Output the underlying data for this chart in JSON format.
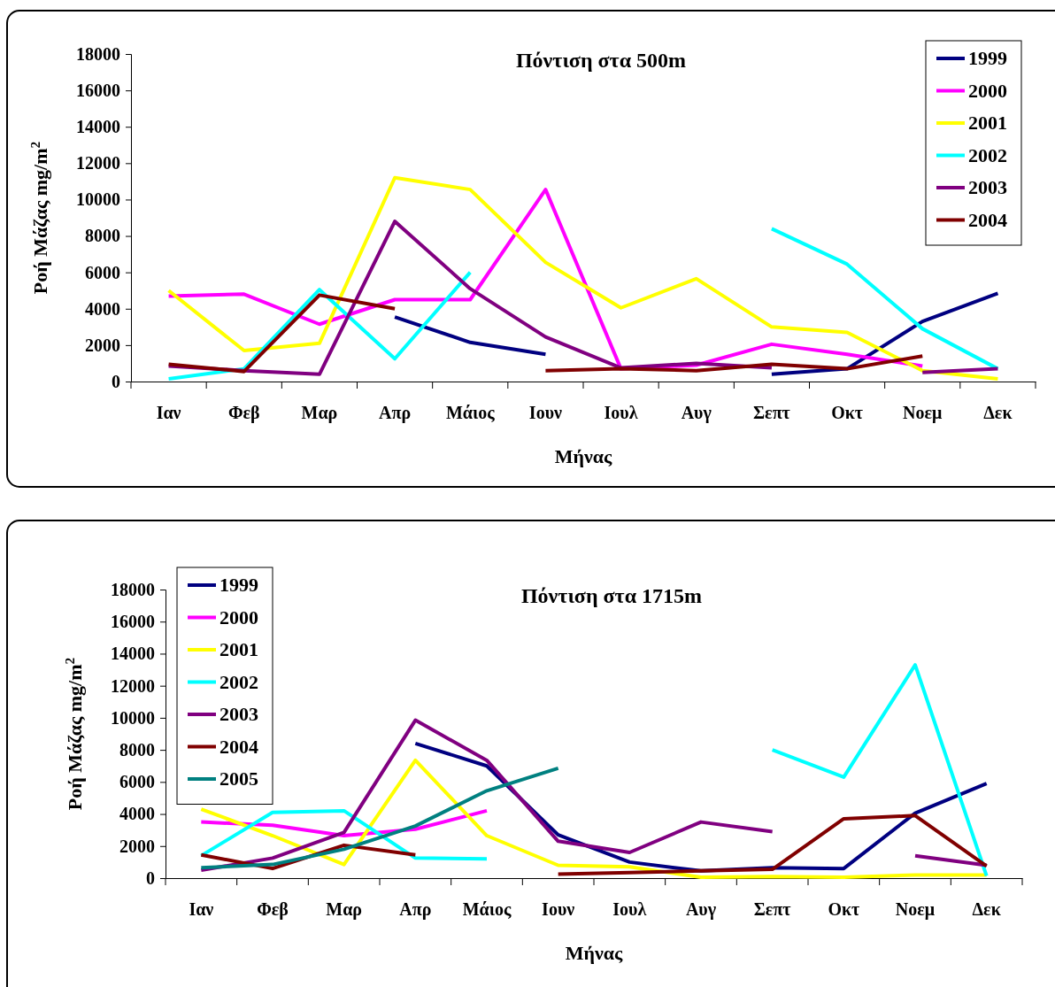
{
  "chart_data": [
    {
      "type": "line",
      "title": "Πόντιση στα 500m",
      "xlabel": "Μήνας",
      "ylabel": "Ροή Μάζας mg/m$^{2}$",
      "categories": [
        "Ιαν",
        "Φεβ",
        "Μαρ",
        "Απρ",
        "Μάιος",
        "Ιουν",
        "Ιουλ",
        "Αυγ",
        "Σεπτ",
        "Οκτ",
        "Νοεμ",
        "Δεκ"
      ],
      "ylim": [
        0,
        18000
      ],
      "yticks": [
        0,
        2000,
        4000,
        6000,
        8000,
        10000,
        12000,
        14000,
        16000,
        18000
      ],
      "grid": false,
      "legend": "top right",
      "marker": "none",
      "line_style": "solid",
      "series": [
        {
          "name": "1999",
          "color": "#000080",
          "values": [
            null,
            null,
            null,
            3550,
            2150,
            1500,
            null,
            null,
            400,
            700,
            3300,
            4850
          ]
        },
        {
          "name": "2000",
          "color": "#ff00ff",
          "values": [
            4700,
            4800,
            3150,
            4500,
            4500,
            10550,
            700,
            900,
            2050,
            1500,
            850,
            null
          ]
        },
        {
          "name": "2001",
          "color": "#ffff00",
          "values": [
            5000,
            1700,
            2100,
            11200,
            10550,
            6550,
            4050,
            5650,
            3000,
            2700,
            600,
            150
          ]
        },
        {
          "name": "2002",
          "color": "#00ffff",
          "values": [
            150,
            700,
            5050,
            1250,
            6000,
            null,
            null,
            null,
            8400,
            6450,
            2900,
            700
          ]
        },
        {
          "name": "2003",
          "color": "#800080",
          "values": [
            850,
            600,
            400,
            8800,
            5100,
            2450,
            750,
            1000,
            750,
            null,
            500,
            700
          ]
        },
        {
          "name": "2004",
          "color": "#800000",
          "values": [
            950,
            550,
            4750,
            4000,
            null,
            600,
            700,
            600,
            950,
            700,
            1400,
            null
          ]
        }
      ]
    },
    {
      "type": "line",
      "title": "Πόντιση στα 1715m",
      "xlabel": "Μήνας",
      "ylabel": "Ροή Μάζας mg/m$^{2}$",
      "categories": [
        "Ιαν",
        "Φεβ",
        "Μαρ",
        "Απρ",
        "Μάιος",
        "Ιουν",
        "Ιουλ",
        "Αυγ",
        "Σεπτ",
        "Οκτ",
        "Νοεμ",
        "Δεκ"
      ],
      "ylim": [
        0,
        18000
      ],
      "yticks": [
        0,
        2000,
        4000,
        6000,
        8000,
        10000,
        12000,
        14000,
        16000,
        18000
      ],
      "grid": false,
      "legend": "top left",
      "marker": "none",
      "line_style": "solid",
      "series": [
        {
          "name": "1999",
          "color": "#000080",
          "values": [
            null,
            null,
            null,
            8400,
            7000,
            2700,
            1000,
            450,
            650,
            600,
            4050,
            5900
          ]
        },
        {
          "name": "2000",
          "color": "#ff00ff",
          "values": [
            3500,
            3300,
            2650,
            3050,
            4200,
            null,
            null,
            null,
            null,
            null,
            null,
            null
          ]
        },
        {
          "name": "2001",
          "color": "#ffff00",
          "values": [
            4300,
            2650,
            850,
            7350,
            2650,
            800,
            700,
            50,
            100,
            50,
            200,
            200
          ]
        },
        {
          "name": "2002",
          "color": "#00ffff",
          "values": [
            1400,
            4100,
            4200,
            1250,
            1200,
            null,
            null,
            null,
            8000,
            6300,
            13300,
            150
          ]
        },
        {
          "name": "2003",
          "color": "#800080",
          "values": [
            500,
            1250,
            2850,
            9850,
            7350,
            2300,
            1600,
            3500,
            2900,
            null,
            1400,
            800
          ]
        },
        {
          "name": "2004",
          "color": "#800000",
          "values": [
            1450,
            600,
            2050,
            1450,
            null,
            250,
            350,
            450,
            550,
            3700,
            3900,
            750
          ]
        },
        {
          "name": "2005",
          "color": "#008080",
          "values": [
            650,
            850,
            1800,
            3250,
            5450,
            6850,
            null,
            null,
            null,
            null,
            null,
            null
          ]
        }
      ]
    }
  ]
}
